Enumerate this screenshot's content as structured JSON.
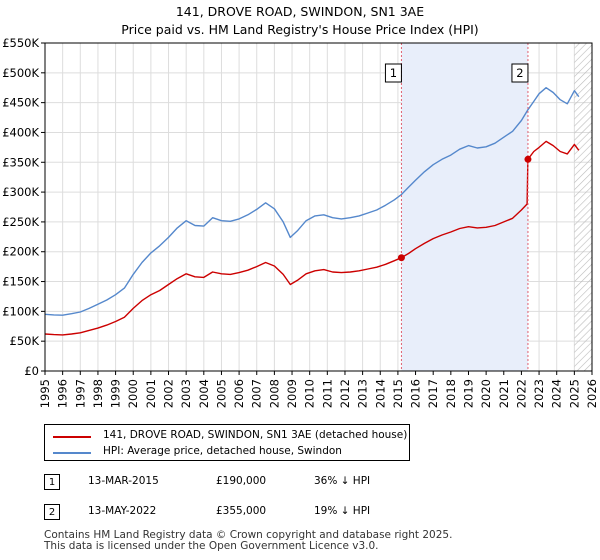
{
  "title": "141, DROVE ROAD, SWINDON, SN1 3AE",
  "subtitle": "Price paid vs. HM Land Registry's House Price Index (HPI)",
  "colors": {
    "property": "#cc0000",
    "hpi": "#5588cc",
    "shade": "#e8eefa",
    "marker_line": "#e06070",
    "grid": "#dddddd"
  },
  "chart_data": {
    "type": "line",
    "xlabel": "",
    "ylabel": "",
    "xlim": [
      1995,
      2026
    ],
    "ylim": [
      0,
      550000
    ],
    "y_ticks": [
      {
        "value": 0,
        "label": "£0"
      },
      {
        "value": 50000,
        "label": "£50K"
      },
      {
        "value": 100000,
        "label": "£100K"
      },
      {
        "value": 150000,
        "label": "£150K"
      },
      {
        "value": 200000,
        "label": "£200K"
      },
      {
        "value": 250000,
        "label": "£250K"
      },
      {
        "value": 300000,
        "label": "£300K"
      },
      {
        "value": 350000,
        "label": "£350K"
      },
      {
        "value": 400000,
        "label": "£400K"
      },
      {
        "value": 450000,
        "label": "£450K"
      },
      {
        "value": 500000,
        "label": "£500K"
      },
      {
        "value": 550000,
        "label": "£550K"
      }
    ],
    "x_ticks": [
      "1995",
      "1996",
      "1997",
      "1998",
      "1999",
      "2000",
      "2001",
      "2002",
      "2003",
      "2004",
      "2005",
      "2006",
      "2007",
      "2008",
      "2009",
      "2010",
      "2011",
      "2012",
      "2013",
      "2014",
      "2015",
      "2016",
      "2017",
      "2018",
      "2019",
      "2020",
      "2021",
      "2022",
      "2023",
      "2024",
      "2025",
      "2026"
    ],
    "shaded_range": [
      2015.2,
      2022.37
    ],
    "future_hatch_from": 2025.0,
    "series": [
      {
        "name": "141, DROVE ROAD, SWINDON, SN1 3AE (detached house)",
        "color": "#cc0000",
        "points": [
          [
            1995.0,
            62000
          ],
          [
            1995.5,
            61000
          ],
          [
            1996.0,
            60500
          ],
          [
            1996.5,
            62000
          ],
          [
            1997.0,
            64000
          ],
          [
            1997.5,
            68000
          ],
          [
            1998.0,
            72000
          ],
          [
            1998.5,
            77000
          ],
          [
            1999.0,
            83000
          ],
          [
            1999.5,
            90000
          ],
          [
            2000.0,
            105000
          ],
          [
            2000.5,
            118000
          ],
          [
            2001.0,
            128000
          ],
          [
            2001.5,
            135000
          ],
          [
            2002.0,
            145000
          ],
          [
            2002.5,
            155000
          ],
          [
            2003.0,
            163000
          ],
          [
            2003.5,
            158000
          ],
          [
            2004.0,
            157000
          ],
          [
            2004.5,
            166000
          ],
          [
            2005.0,
            163000
          ],
          [
            2005.5,
            162000
          ],
          [
            2006.0,
            165000
          ],
          [
            2006.5,
            169000
          ],
          [
            2007.0,
            175000
          ],
          [
            2007.5,
            182000
          ],
          [
            2008.0,
            176000
          ],
          [
            2008.5,
            162000
          ],
          [
            2008.9,
            145000
          ],
          [
            2009.3,
            152000
          ],
          [
            2009.8,
            163000
          ],
          [
            2010.3,
            168000
          ],
          [
            2010.8,
            170000
          ],
          [
            2011.3,
            166000
          ],
          [
            2011.8,
            165000
          ],
          [
            2012.3,
            166000
          ],
          [
            2012.8,
            168000
          ],
          [
            2013.3,
            171000
          ],
          [
            2013.8,
            174000
          ],
          [
            2014.3,
            179000
          ],
          [
            2014.8,
            185000
          ],
          [
            2015.2,
            190000
          ],
          [
            2015.6,
            197000
          ],
          [
            2016.0,
            205000
          ],
          [
            2016.5,
            214000
          ],
          [
            2017.0,
            222000
          ],
          [
            2017.5,
            228000
          ],
          [
            2018.0,
            233000
          ],
          [
            2018.5,
            239000
          ],
          [
            2019.0,
            242000
          ],
          [
            2019.5,
            240000
          ],
          [
            2020.0,
            241000
          ],
          [
            2020.5,
            244000
          ],
          [
            2021.0,
            250000
          ],
          [
            2021.5,
            256000
          ],
          [
            2022.0,
            270000
          ],
          [
            2022.32,
            280000
          ],
          [
            2022.37,
            355000
          ],
          [
            2022.7,
            368000
          ],
          [
            2023.0,
            375000
          ],
          [
            2023.4,
            385000
          ],
          [
            2023.8,
            378000
          ],
          [
            2024.2,
            368000
          ],
          [
            2024.6,
            364000
          ],
          [
            2025.0,
            380000
          ],
          [
            2025.25,
            370000
          ]
        ]
      },
      {
        "name": "HPI: Average price, detached house, Swindon",
        "color": "#5588cc",
        "points": [
          [
            1995.0,
            95000
          ],
          [
            1995.5,
            94000
          ],
          [
            1996.0,
            93500
          ],
          [
            1996.5,
            96000
          ],
          [
            1997.0,
            99000
          ],
          [
            1997.5,
            105000
          ],
          [
            1998.0,
            112000
          ],
          [
            1998.5,
            119000
          ],
          [
            1999.0,
            128000
          ],
          [
            1999.5,
            139000
          ],
          [
            2000.0,
            162000
          ],
          [
            2000.5,
            182000
          ],
          [
            2001.0,
            198000
          ],
          [
            2001.5,
            210000
          ],
          [
            2002.0,
            224000
          ],
          [
            2002.5,
            240000
          ],
          [
            2003.0,
            252000
          ],
          [
            2003.5,
            244000
          ],
          [
            2004.0,
            243000
          ],
          [
            2004.5,
            257000
          ],
          [
            2005.0,
            252000
          ],
          [
            2005.5,
            251000
          ],
          [
            2006.0,
            255000
          ],
          [
            2006.5,
            262000
          ],
          [
            2007.0,
            271000
          ],
          [
            2007.5,
            282000
          ],
          [
            2008.0,
            272000
          ],
          [
            2008.5,
            250000
          ],
          [
            2008.9,
            224000
          ],
          [
            2009.3,
            235000
          ],
          [
            2009.8,
            252000
          ],
          [
            2010.3,
            260000
          ],
          [
            2010.8,
            262000
          ],
          [
            2011.3,
            257000
          ],
          [
            2011.8,
            255000
          ],
          [
            2012.3,
            257000
          ],
          [
            2012.8,
            260000
          ],
          [
            2013.3,
            265000
          ],
          [
            2013.8,
            270000
          ],
          [
            2014.3,
            278000
          ],
          [
            2014.8,
            287000
          ],
          [
            2015.2,
            296000
          ],
          [
            2015.6,
            308000
          ],
          [
            2016.0,
            320000
          ],
          [
            2016.5,
            334000
          ],
          [
            2017.0,
            346000
          ],
          [
            2017.5,
            355000
          ],
          [
            2018.0,
            362000
          ],
          [
            2018.5,
            372000
          ],
          [
            2019.0,
            378000
          ],
          [
            2019.5,
            374000
          ],
          [
            2020.0,
            376000
          ],
          [
            2020.5,
            382000
          ],
          [
            2021.0,
            392000
          ],
          [
            2021.5,
            402000
          ],
          [
            2022.0,
            420000
          ],
          [
            2022.37,
            438000
          ],
          [
            2022.7,
            452000
          ],
          [
            2023.0,
            465000
          ],
          [
            2023.4,
            475000
          ],
          [
            2023.8,
            467000
          ],
          [
            2024.2,
            455000
          ],
          [
            2024.6,
            448000
          ],
          [
            2025.0,
            470000
          ],
          [
            2025.25,
            460000
          ]
        ]
      }
    ],
    "transactions": [
      {
        "id": "1",
        "x": 2015.2,
        "y": 190000,
        "date": "13-MAR-2015",
        "price": "£190,000",
        "hpi_diff": "36% ↓ HPI"
      },
      {
        "id": "2",
        "x": 2022.37,
        "y": 355000,
        "date": "13-MAY-2022",
        "price": "£355,000",
        "hpi_diff": "19% ↓ HPI"
      }
    ]
  },
  "legend": {
    "property_label": "141, DROVE ROAD, SWINDON, SN1 3AE (detached house)",
    "hpi_label": "HPI: Average price, detached house, Swindon"
  },
  "footer": {
    "line1": "Contains HM Land Registry data © Crown copyright and database right 2025.",
    "line2": "This data is licensed under the Open Government Licence v3.0."
  }
}
